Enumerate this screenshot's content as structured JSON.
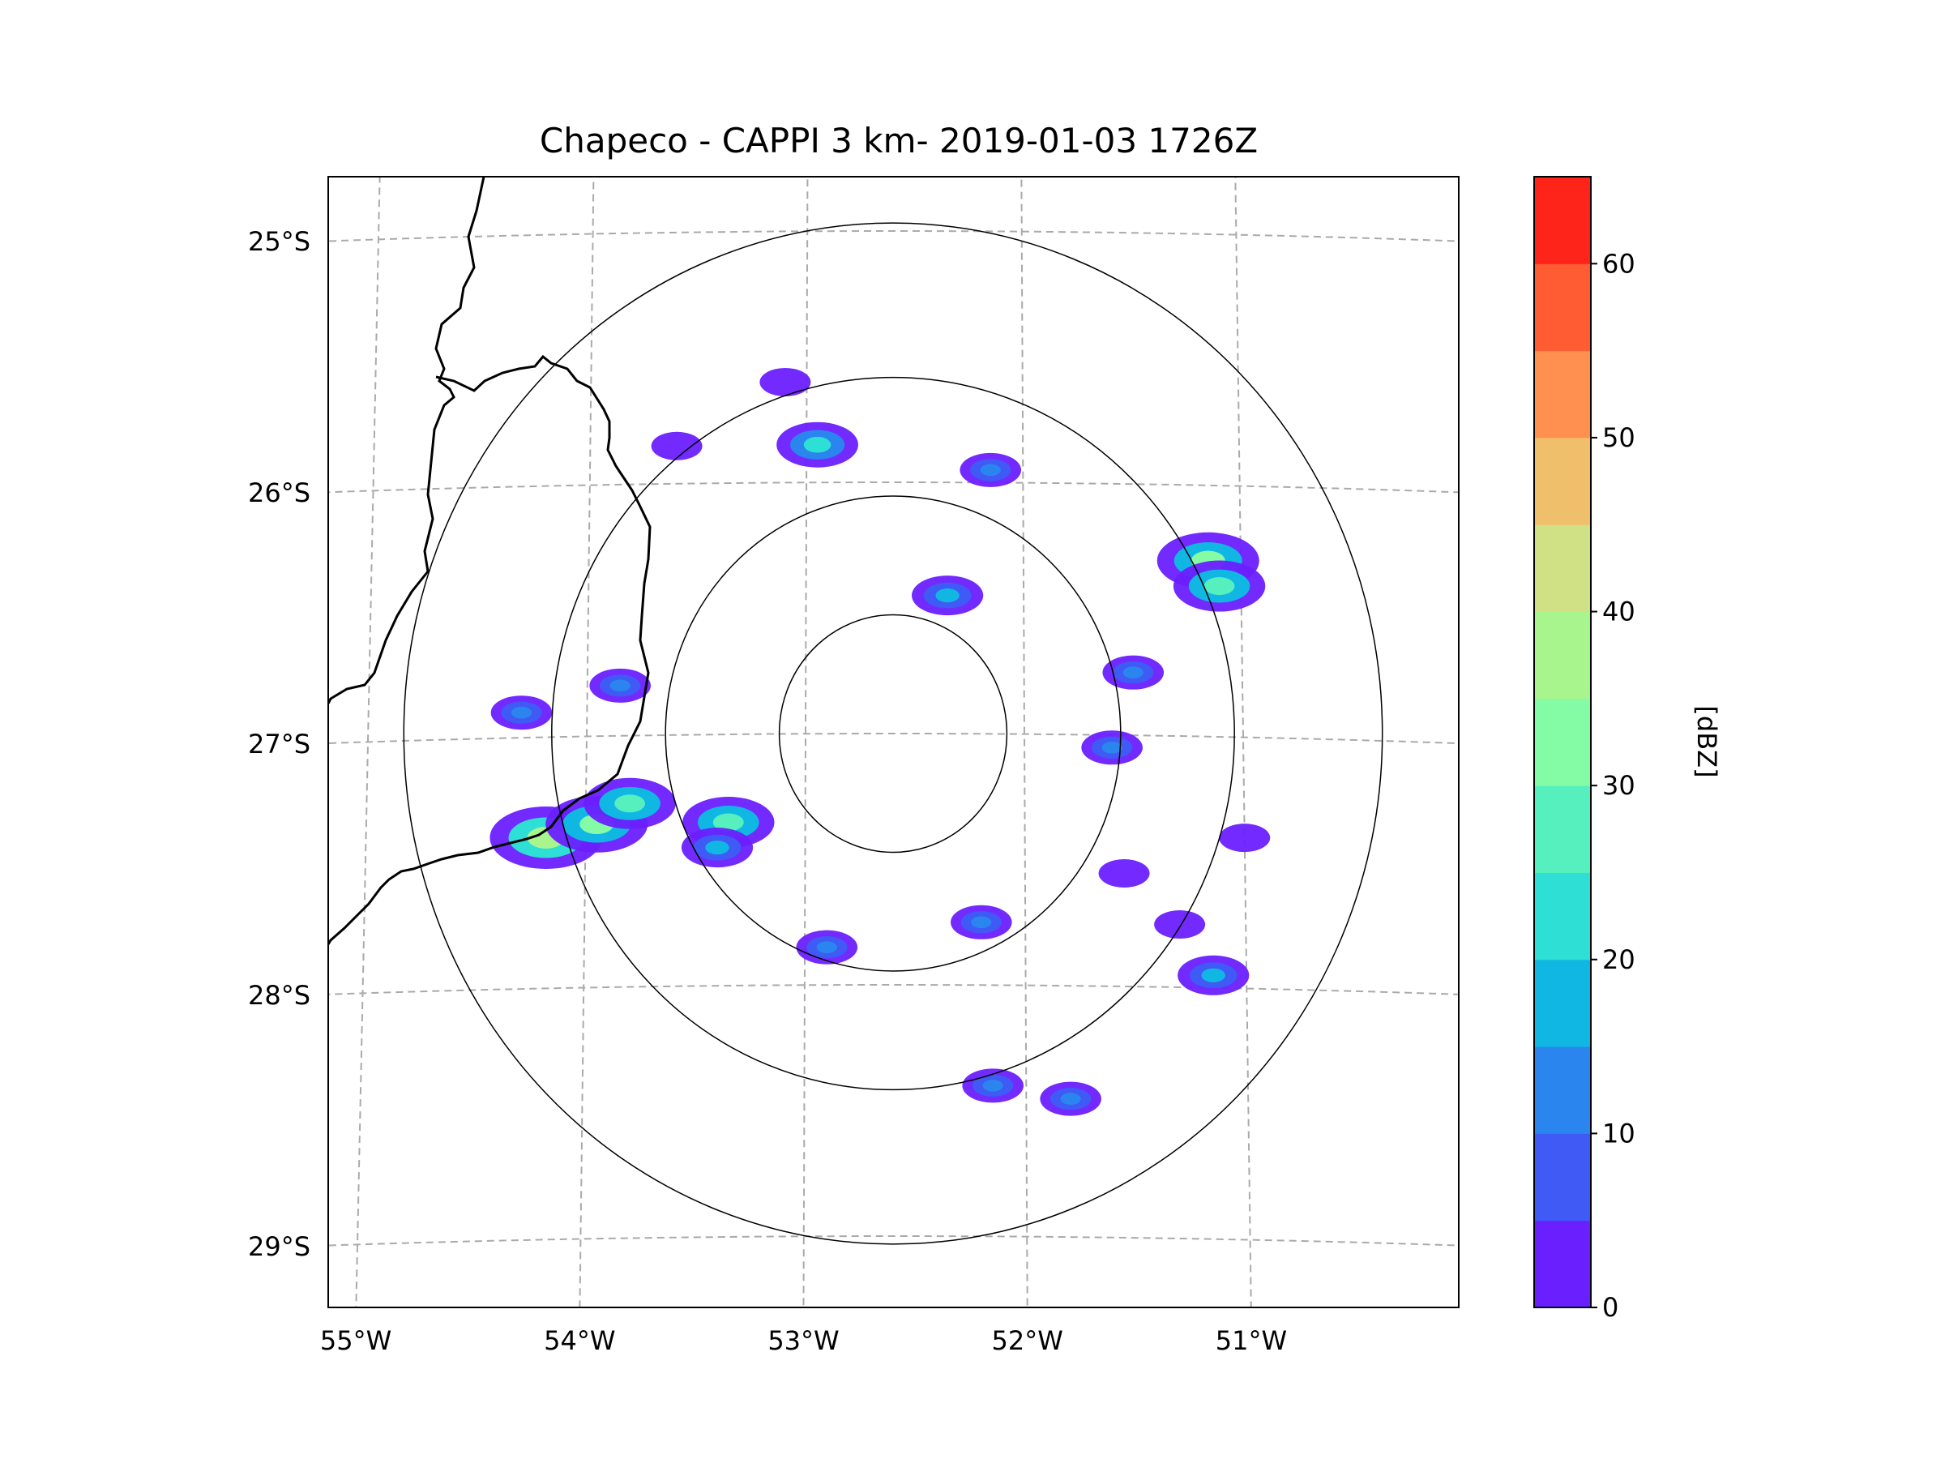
{
  "title": "Chapeco - CAPPI 3 km- 2019-01-03 1726Z",
  "map": {
    "lon_labels": [
      "55°W",
      "54°W",
      "53°W",
      "52°W",
      "51°W"
    ],
    "lat_labels": [
      "25°S",
      "26°S",
      "27°S",
      "28°S",
      "29°S"
    ],
    "lon_values": [
      -55,
      -54,
      -53,
      -52,
      -51
    ],
    "lat_values": [
      -25,
      -26,
      -27,
      -28,
      -29
    ],
    "radar_site": {
      "lon": -52.6,
      "lat": -27.0
    },
    "range_rings_deg": [
      0.5,
      1.0,
      1.5,
      2.15
    ]
  },
  "colorbar": {
    "label": "[dBZ]",
    "tick_labels": [
      "0",
      "10",
      "20",
      "30",
      "40",
      "50",
      "60"
    ],
    "min": 0,
    "max": 65,
    "step": 5,
    "colors": [
      "#6a1fff",
      "#3f5af5",
      "#2a86ee",
      "#11b7e3",
      "#2ddfd4",
      "#55f0bd",
      "#84fba5",
      "#a8f58e",
      "#cfe085",
      "#f0bf6c",
      "#ff904f",
      "#ff5c33",
      "#ff2419"
    ]
  },
  "echoes": [
    {
      "lon": -54.18,
      "lat": -27.4,
      "dbz": 35
    },
    {
      "lon": -53.95,
      "lat": -27.35,
      "dbz": 30
    },
    {
      "lon": -53.8,
      "lat": -27.27,
      "dbz": 25
    },
    {
      "lon": -53.35,
      "lat": -27.35,
      "dbz": 25
    },
    {
      "lon": -53.4,
      "lat": -27.45,
      "dbz": 15
    },
    {
      "lon": -51.15,
      "lat": -26.3,
      "dbz": 30
    },
    {
      "lon": -51.1,
      "lat": -26.4,
      "dbz": 25
    },
    {
      "lon": -52.95,
      "lat": -25.85,
      "dbz": 20
    },
    {
      "lon": -52.35,
      "lat": -26.45,
      "dbz": 15
    },
    {
      "lon": -54.3,
      "lat": -26.9,
      "dbz": 10
    },
    {
      "lon": -53.85,
      "lat": -26.8,
      "dbz": 10
    },
    {
      "lon": -51.15,
      "lat": -27.95,
      "dbz": 15
    },
    {
      "lon": -52.15,
      "lat": -28.4,
      "dbz": 10
    },
    {
      "lon": -51.8,
      "lat": -28.45,
      "dbz": 10
    },
    {
      "lon": -51.55,
      "lat": -27.55,
      "dbz": 5
    },
    {
      "lon": -51.3,
      "lat": -27.75,
      "dbz": 5
    },
    {
      "lon": -51.0,
      "lat": -27.4,
      "dbz": 5
    },
    {
      "lon": -52.2,
      "lat": -27.75,
      "dbz": 10
    },
    {
      "lon": -52.9,
      "lat": -27.85,
      "dbz": 10
    },
    {
      "lon": -51.5,
      "lat": -26.75,
      "dbz": 10
    },
    {
      "lon": -51.6,
      "lat": -27.05,
      "dbz": 10
    },
    {
      "lon": -53.1,
      "lat": -25.6,
      "dbz": 5
    },
    {
      "lon": -53.6,
      "lat": -25.85,
      "dbz": 5
    },
    {
      "lon": -52.15,
      "lat": -25.95,
      "dbz": 10
    }
  ]
}
